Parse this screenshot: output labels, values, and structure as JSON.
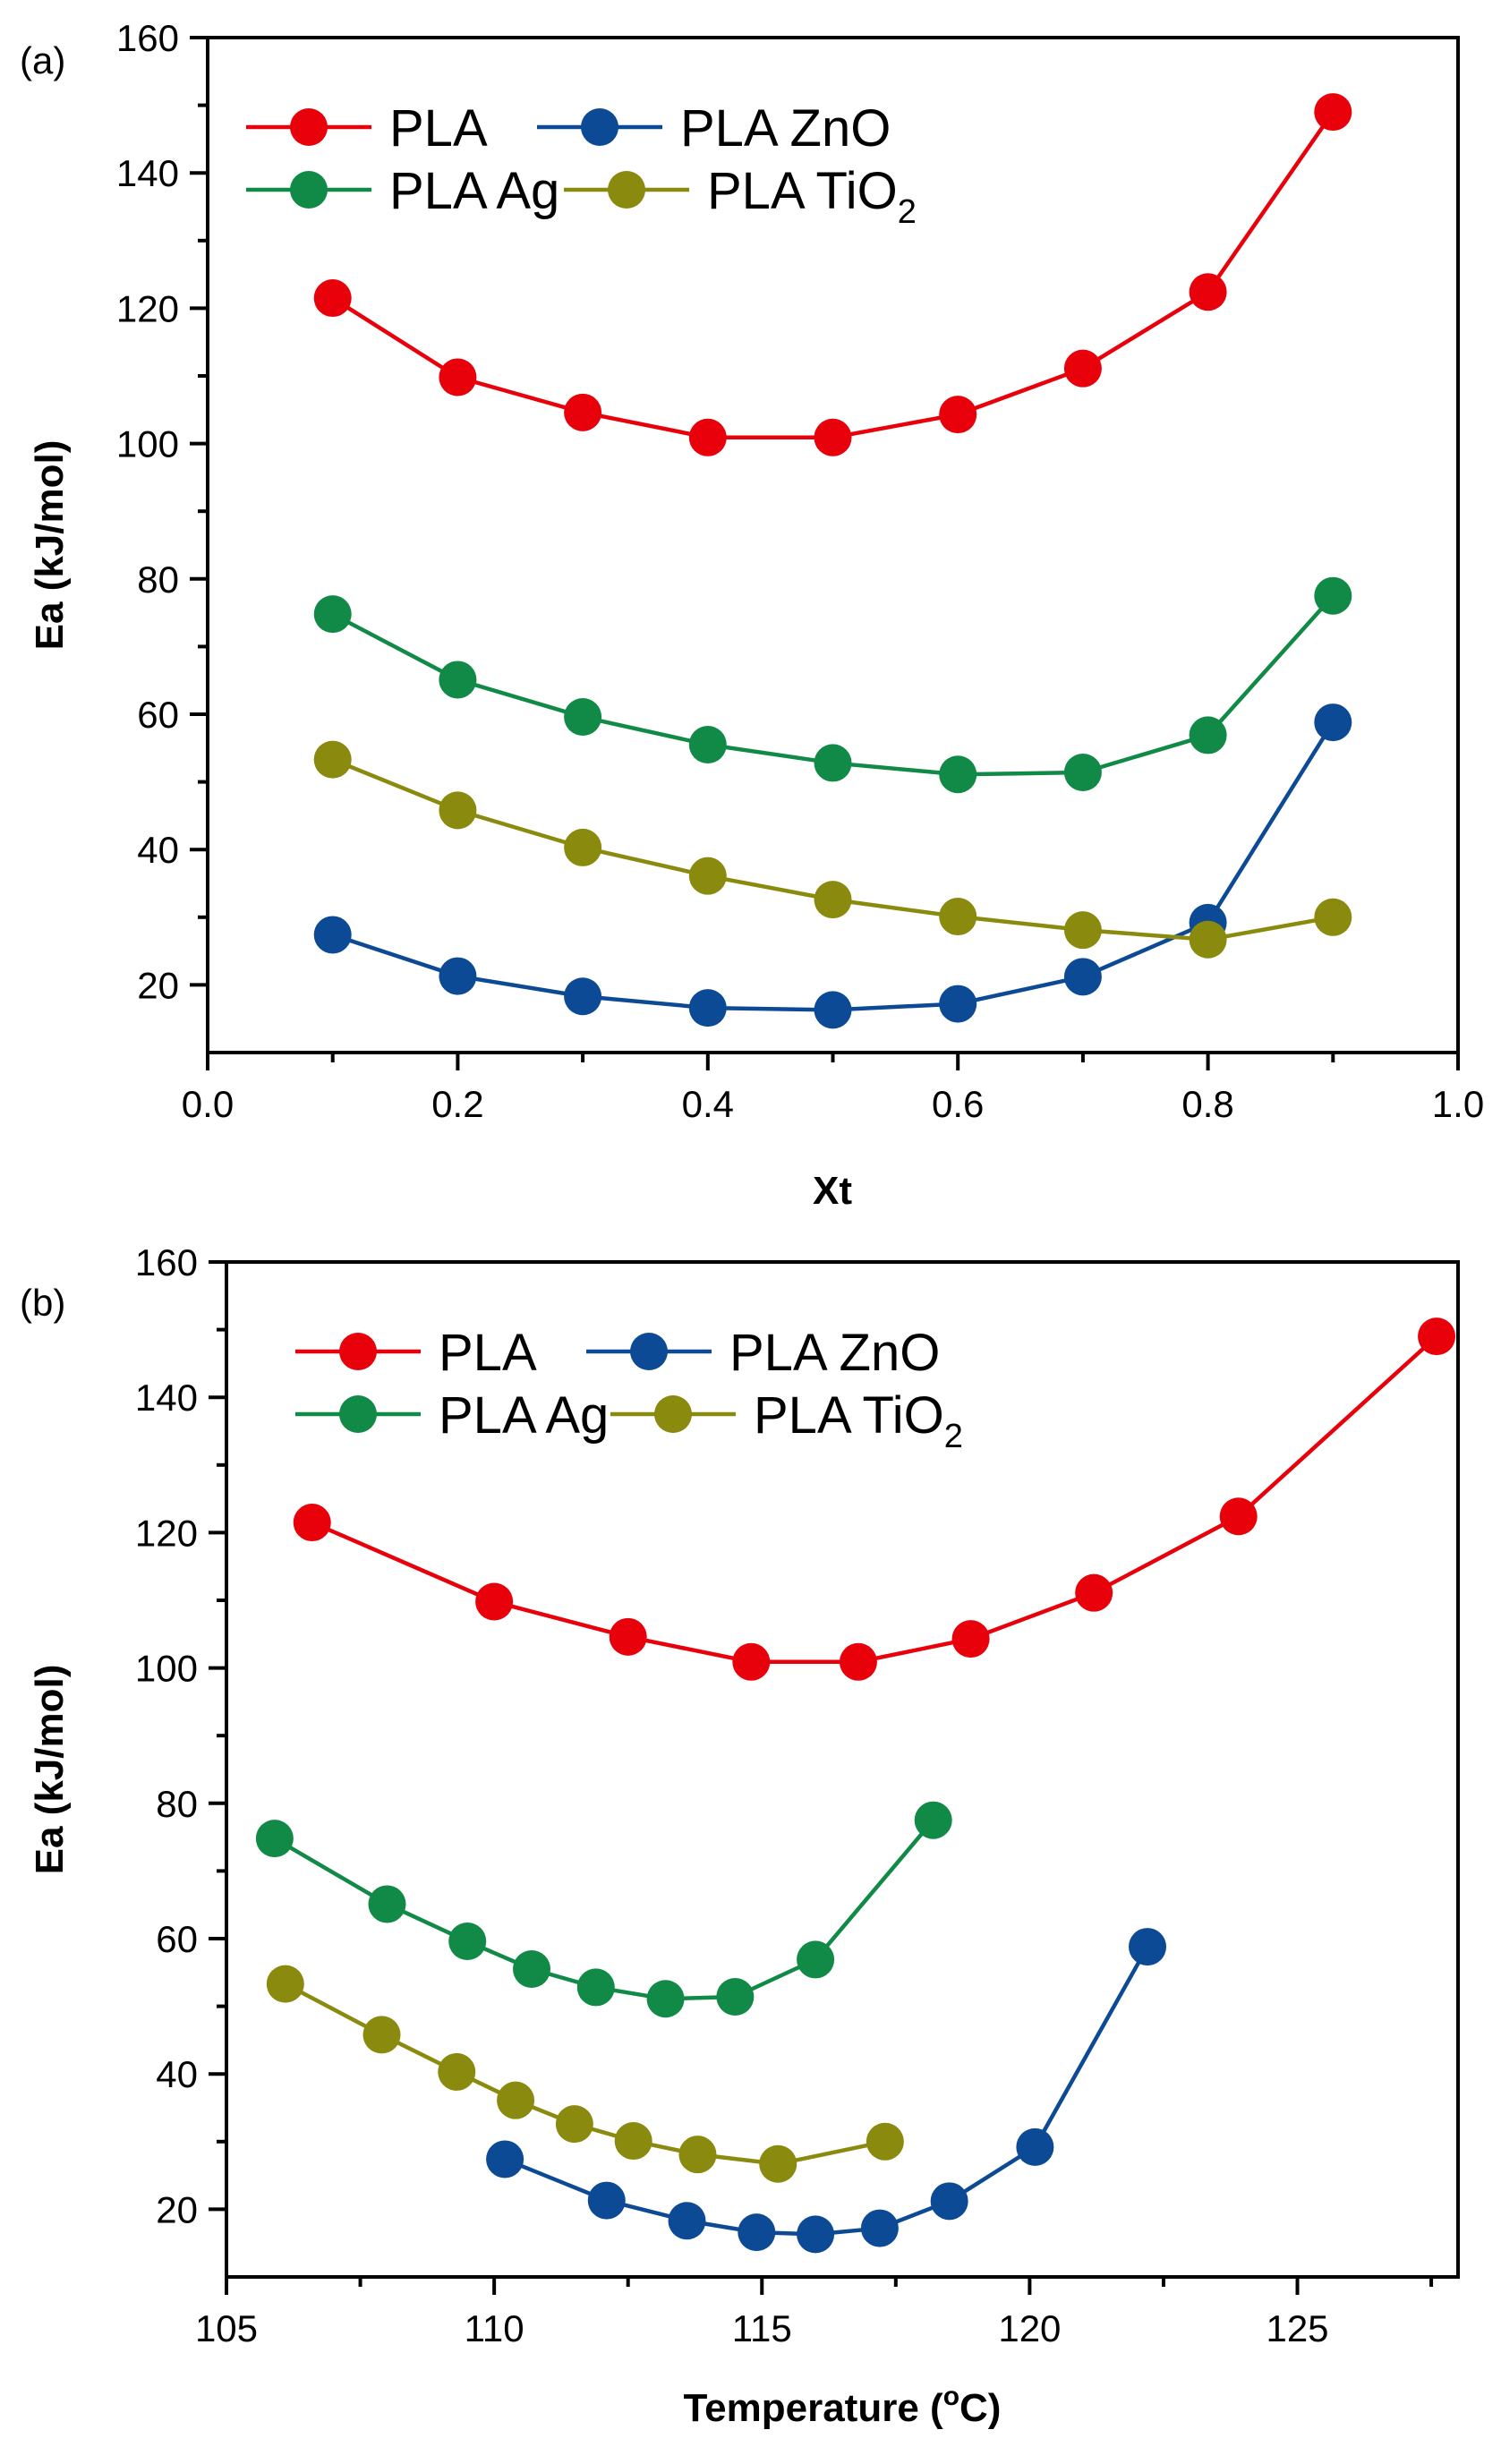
{
  "chart_data": [
    {
      "type": "line",
      "panel_label": "(a)",
      "xlabel": "Xt",
      "ylabel": "Ea (kJ/mol)",
      "xlim": [
        0.0,
        1.0
      ],
      "ylim": [
        10,
        160
      ],
      "xticks": [
        "0.0",
        "0.2",
        "0.4",
        "0.6",
        "0.8",
        "1.0"
      ],
      "yticks": [
        "20",
        "40",
        "60",
        "80",
        "100",
        "120",
        "140",
        "160"
      ],
      "legend": {
        "position": "top-left",
        "columns": 2
      },
      "series": [
        {
          "name": "PLA",
          "color": "#e8000b",
          "x": [
            0.1,
            0.2,
            0.3,
            0.4,
            0.5,
            0.6,
            0.7,
            0.8,
            0.9
          ],
          "y": [
            121.5,
            109.8,
            104.6,
            100.9,
            100.9,
            104.3,
            111.1,
            122.4,
            149.0
          ]
        },
        {
          "name": "PLA ZnO",
          "color": "#0c4a96",
          "x": [
            0.1,
            0.2,
            0.3,
            0.4,
            0.5,
            0.6,
            0.7,
            0.8,
            0.9
          ],
          "y": [
            27.4,
            21.3,
            18.3,
            16.6,
            16.3,
            17.2,
            21.2,
            29.2,
            58.8
          ]
        },
        {
          "name": "PLA Ag",
          "color": "#118a47",
          "x": [
            0.1,
            0.2,
            0.3,
            0.4,
            0.5,
            0.6,
            0.7,
            0.8,
            0.9
          ],
          "y": [
            74.8,
            65.1,
            59.6,
            55.5,
            52.8,
            51.1,
            51.4,
            56.9,
            77.5
          ]
        },
        {
          "name": "PLA TiO2",
          "name_base": "PLA TiO",
          "name_sub": "2",
          "color": "#8a8a0e",
          "x": [
            0.1,
            0.2,
            0.3,
            0.4,
            0.5,
            0.6,
            0.7,
            0.8,
            0.9
          ],
          "y": [
            53.3,
            45.8,
            40.3,
            36.1,
            32.6,
            30.1,
            28.1,
            26.7,
            30.0
          ]
        }
      ]
    },
    {
      "type": "line",
      "panel_label": "(b)",
      "xlabel": "Temperature (°C)",
      "xlabel_parts": [
        "Temperature (",
        "o",
        "C)"
      ],
      "ylabel": "Ea (kJ/mol)",
      "xlim": [
        105,
        128
      ],
      "ylim": [
        10,
        160
      ],
      "xticks": [
        "105",
        "110",
        "115",
        "120",
        "125"
      ],
      "yticks": [
        "20",
        "40",
        "60",
        "80",
        "100",
        "120",
        "140",
        "160"
      ],
      "legend": {
        "position": "top-left",
        "columns": 2
      },
      "series": [
        {
          "name": "PLA",
          "color": "#e8000b",
          "x": [
            106.6,
            110.0,
            112.5,
            114.8,
            116.8,
            118.9,
            121.2,
            123.9,
            127.6
          ],
          "y": [
            121.5,
            109.8,
            104.6,
            100.9,
            100.9,
            104.3,
            111.1,
            122.4,
            149.0
          ]
        },
        {
          "name": "PLA ZnO",
          "color": "#0c4a96",
          "x": [
            110.2,
            112.1,
            113.6,
            114.9,
            116.0,
            117.2,
            118.5,
            120.1,
            122.2
          ],
          "y": [
            27.4,
            21.3,
            18.3,
            16.6,
            16.3,
            17.2,
            21.2,
            29.2,
            58.8
          ]
        },
        {
          "name": "PLA Ag",
          "color": "#118a47",
          "x": [
            105.9,
            108.0,
            109.5,
            110.7,
            111.9,
            113.2,
            114.5,
            116.0,
            118.2
          ],
          "y": [
            74.8,
            65.1,
            59.6,
            55.5,
            52.8,
            51.1,
            51.4,
            56.9,
            77.5
          ]
        },
        {
          "name": "PLA TiO2",
          "name_base": "PLA TiO",
          "name_sub": "2",
          "color": "#8a8a0e",
          "x": [
            106.1,
            107.9,
            109.3,
            110.4,
            111.5,
            112.6,
            113.8,
            115.3,
            117.3
          ],
          "y": [
            53.3,
            45.8,
            40.3,
            36.1,
            32.6,
            30.1,
            28.1,
            26.7,
            30.0
          ]
        }
      ]
    }
  ]
}
